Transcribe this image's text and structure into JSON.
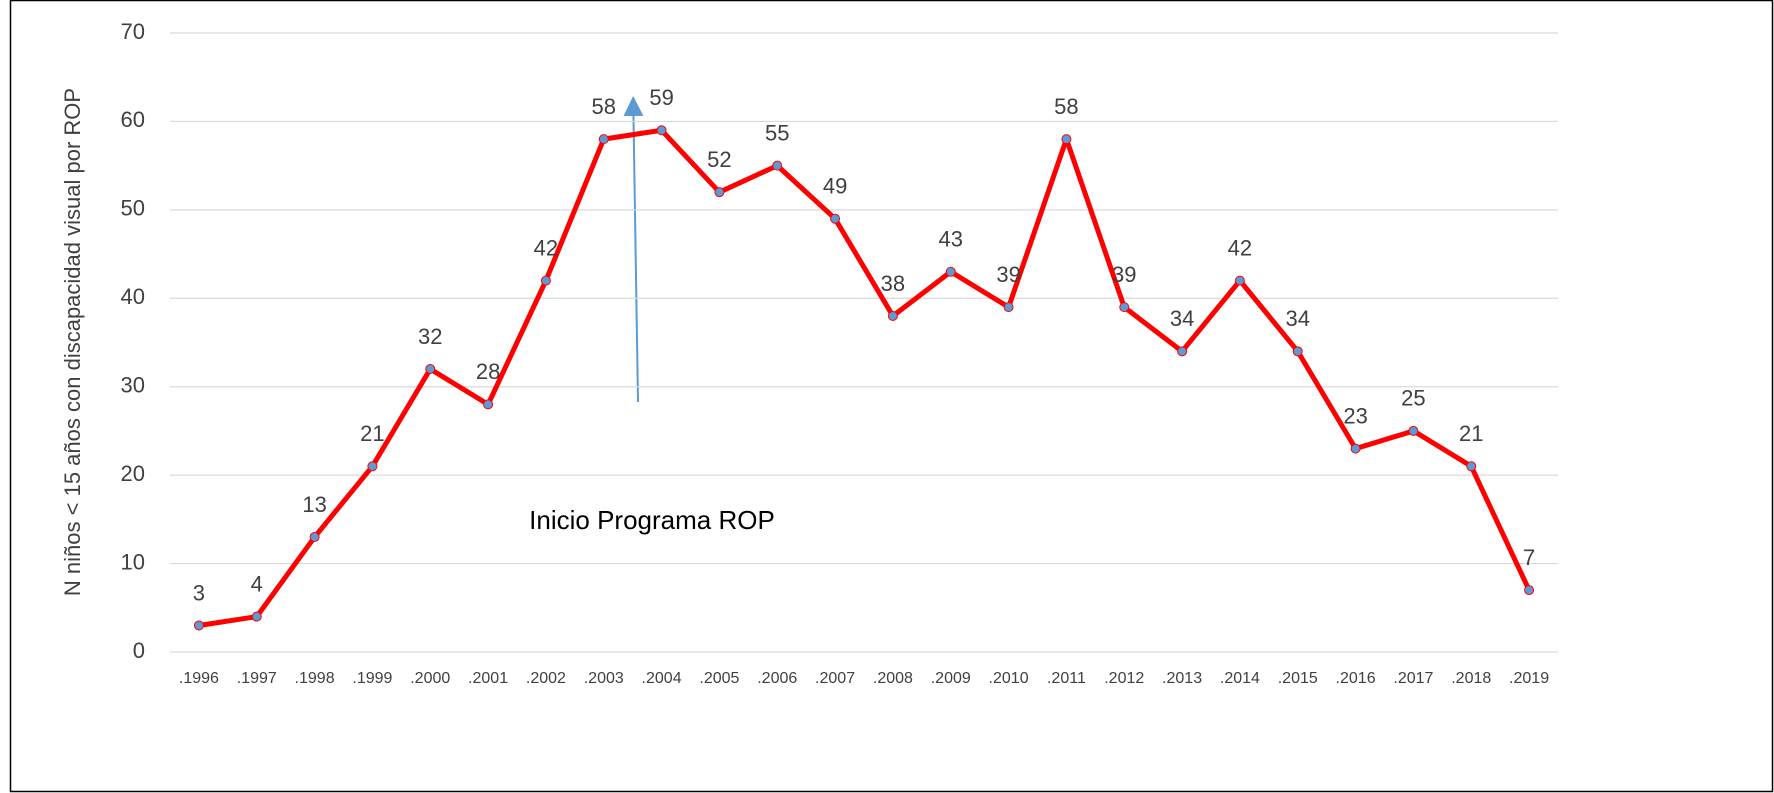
{
  "chart_data": {
    "type": "line",
    "y_label": "N niños < 15 años con discapacidad visual por ROP",
    "annotations": [
      "Inicio Programa ROP"
    ],
    "categories": [
      ".1996",
      ".1997",
      ".1998",
      ".1999",
      ".2000",
      ".2001",
      ".2002",
      ".2003",
      ".2004",
      ".2005",
      ".2006",
      ".2007",
      ".2008",
      ".2009",
      ".2010",
      ".2011",
      ".2012",
      ".2013",
      ".2014",
      ".2015",
      ".2016",
      ".2017",
      ".2018",
      ".2019"
    ],
    "values": [
      3,
      4,
      13,
      21,
      32,
      28,
      42,
      58,
      59,
      52,
      55,
      49,
      38,
      43,
      39,
      58,
      39,
      34,
      42,
      34,
      23,
      25,
      21,
      7
    ],
    "color": "#ff0000",
    "marker_color": "#5b9bd5",
    "ylim": [
      0,
      70
    ],
    "yticks": [
      0,
      10,
      20,
      30,
      40,
      50,
      60,
      70
    ],
    "grid": true
  }
}
